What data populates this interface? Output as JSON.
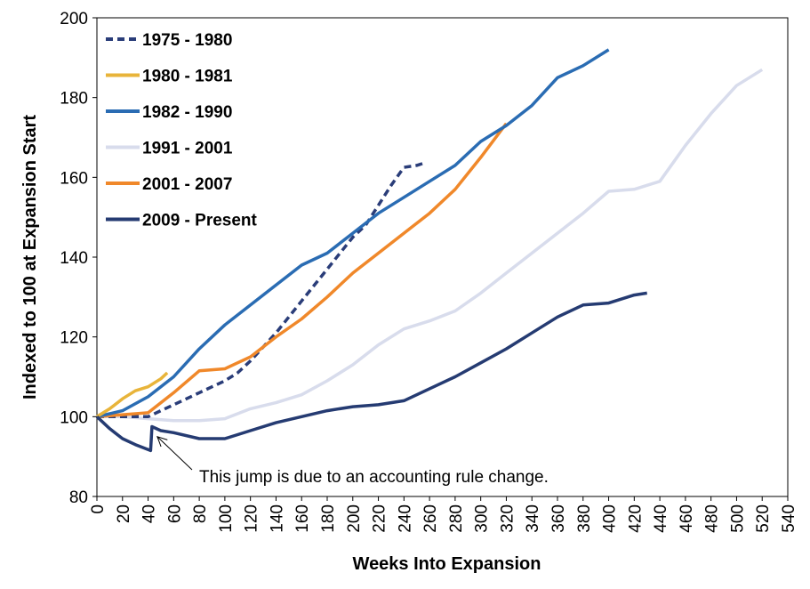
{
  "chart_data": {
    "type": "line",
    "title": "",
    "xlabel": "Weeks Into Expansion",
    "ylabel": "Indexed to 100 at Expansion Start",
    "xlim": [
      0,
      540
    ],
    "ylim": [
      80,
      200
    ],
    "xticks": [
      0,
      20,
      40,
      60,
      80,
      100,
      120,
      140,
      160,
      180,
      200,
      220,
      240,
      260,
      280,
      300,
      320,
      340,
      360,
      380,
      400,
      420,
      440,
      460,
      480,
      500,
      520,
      540
    ],
    "yticks": [
      80,
      100,
      120,
      140,
      160,
      180,
      200
    ],
    "legend_position": "top-left",
    "series": [
      {
        "name": "1975 - 1980",
        "color": "#2a3d79",
        "dashed": true,
        "x": [
          0,
          20,
          40,
          50,
          60,
          70,
          80,
          90,
          100,
          110,
          120,
          130,
          140,
          150,
          160,
          170,
          180,
          190,
          200,
          210,
          220,
          230,
          240,
          250,
          255
        ],
        "y": [
          100,
          100,
          100,
          101.5,
          103,
          104.5,
          106,
          107.5,
          109,
          111,
          114,
          117.5,
          121,
          125,
          129,
          133,
          137,
          141,
          145,
          148,
          153,
          158,
          162.5,
          163,
          163.5
        ]
      },
      {
        "name": "1980 - 1981",
        "color": "#e8b43a",
        "dashed": false,
        "x": [
          0,
          10,
          20,
          30,
          40,
          50,
          55
        ],
        "y": [
          100,
          102,
          104.5,
          106.5,
          107.5,
          109.5,
          111
        ]
      },
      {
        "name": "1982 - 1990",
        "color": "#2a6cb3",
        "dashed": false,
        "x": [
          0,
          20,
          40,
          60,
          80,
          100,
          120,
          140,
          160,
          180,
          200,
          220,
          240,
          260,
          280,
          300,
          320,
          340,
          360,
          380,
          400
        ],
        "y": [
          100,
          101.5,
          105,
          110,
          117,
          123,
          128,
          133,
          138,
          141,
          146,
          151,
          155,
          159,
          163,
          169,
          173,
          178,
          185,
          188,
          192
        ]
      },
      {
        "name": "1991 - 2001",
        "color": "#d8dcec",
        "dashed": false,
        "x": [
          0,
          20,
          40,
          60,
          80,
          100,
          120,
          140,
          160,
          180,
          200,
          220,
          240,
          260,
          280,
          300,
          320,
          340,
          360,
          380,
          400,
          420,
          440,
          460,
          480,
          500,
          520
        ],
        "y": [
          100,
          100,
          99.5,
          99,
          99,
          99.5,
          102,
          103.5,
          105.5,
          109,
          113,
          118,
          122,
          124,
          126.5,
          131,
          136,
          141,
          146,
          151,
          156.5,
          157,
          159,
          168,
          176,
          183,
          187
        ]
      },
      {
        "name": "2001 - 2007",
        "color": "#f0882a",
        "dashed": false,
        "x": [
          0,
          20,
          40,
          60,
          80,
          100,
          120,
          140,
          160,
          180,
          200,
          220,
          240,
          260,
          280,
          300,
          320
        ],
        "y": [
          100,
          100.5,
          101,
          106,
          111.5,
          112,
          115,
          120,
          124.5,
          130,
          136,
          141,
          146,
          151,
          157,
          165,
          173.5
        ]
      },
      {
        "name": "2009 - Present",
        "color": "#253b72",
        "dashed": false,
        "x": [
          0,
          10,
          20,
          30,
          42,
          43,
          50,
          60,
          80,
          100,
          120,
          140,
          160,
          180,
          200,
          220,
          240,
          260,
          280,
          300,
          320,
          340,
          360,
          380,
          400,
          420,
          430
        ],
        "y": [
          100,
          97,
          94.5,
          93,
          91.5,
          97.5,
          96.5,
          96,
          94.5,
          94.5,
          96.5,
          98.5,
          100,
          101.5,
          102.5,
          103,
          104,
          107,
          110,
          113.5,
          117,
          121,
          125,
          128,
          128.5,
          130.5,
          131
        ]
      }
    ],
    "annotation": {
      "text": "This jump is due to an accounting rule change.",
      "x": 43,
      "y": 95
    }
  }
}
